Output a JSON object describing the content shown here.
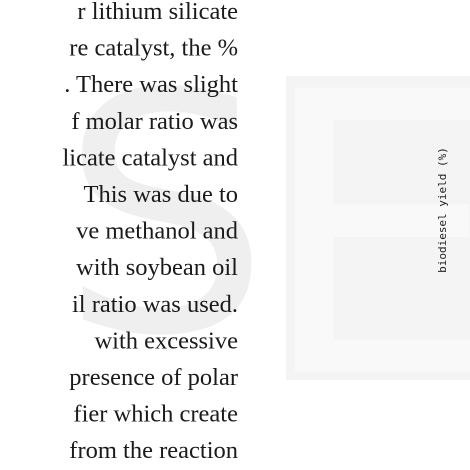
{
  "watermark": {
    "left_letter": "S",
    "right_letter": "E"
  },
  "figure": {
    "axis_label": "biodiesel yield (%)"
  },
  "body": {
    "lines": [
      "r lithium silicate",
      "re catalyst, the %",
      ". There was slight",
      "f molar ratio was",
      "licate catalyst and",
      "This was due to",
      "ve methanol and",
      "with soybean oil",
      "il ratio was used.",
      "with excessive",
      "presence of polar",
      "fier which create",
      "from the reaction"
    ]
  }
}
